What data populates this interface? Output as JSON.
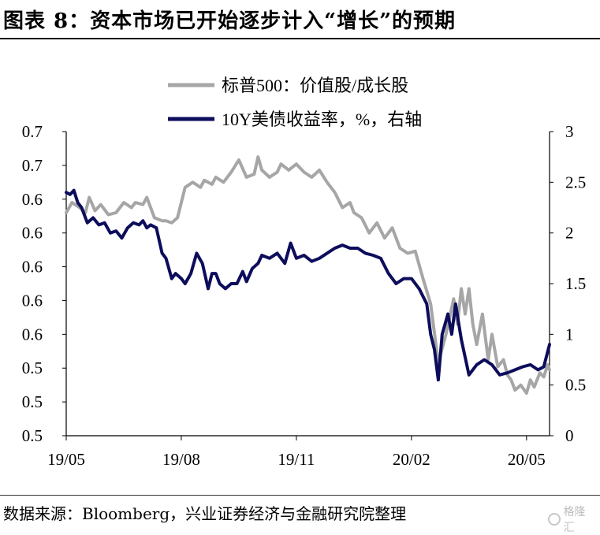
{
  "title": "图表 8：资本市场已开始逐步计入“增长”的预期",
  "source": "数据来源：Bloomberg，兴业证券经济与金融研究院整理",
  "watermark": {
    "text": "格隆汇",
    "icon": "gelonghui-logo-icon"
  },
  "chart_data": {
    "type": "line",
    "x_ticks": [
      "19/05",
      "19/08",
      "19/11",
      "20/02",
      "20/05"
    ],
    "x_tick_pos": [
      0,
      3,
      6,
      9,
      12
    ],
    "x_range": [
      0,
      12.6
    ],
    "left_axis": {
      "ticks": [
        "0.7",
        "0.7",
        "0.6",
        "0.6",
        "0.6",
        "0.6",
        "0.6",
        "0.5",
        "0.5",
        "0.5"
      ],
      "ylim": [
        0.5,
        0.7
      ]
    },
    "right_axis": {
      "ticks": [
        "3",
        "2.5",
        "2",
        "1.5",
        "1",
        "0.5",
        "0"
      ],
      "ylim": [
        0,
        3
      ]
    },
    "legend_position": "top-right",
    "colors": {
      "value_growth": "#a6a6a6",
      "treasury": "#0d0d5c"
    },
    "series": [
      {
        "name": "标普500：价值股/成长股",
        "axis": "right",
        "color": "#a6a6a6",
        "x": [
          0,
          0.15,
          0.35,
          0.5,
          0.6,
          0.75,
          0.9,
          1.1,
          1.3,
          1.5,
          1.7,
          1.8,
          2.0,
          2.1,
          2.3,
          2.5,
          2.6,
          2.75,
          2.9,
          3.1,
          3.3,
          3.5,
          3.6,
          3.8,
          3.9,
          4.1,
          4.3,
          4.5,
          4.7,
          4.9,
          5.0,
          5.1,
          5.3,
          5.5,
          5.6,
          5.8,
          6.0,
          6.2,
          6.4,
          6.6,
          6.8,
          7.0,
          7.2,
          7.4,
          7.5,
          7.7,
          7.9,
          8.1,
          8.3,
          8.5,
          8.7,
          8.9,
          9.1,
          9.3,
          9.5,
          9.7,
          9.9,
          10.1,
          10.2,
          10.3,
          10.4,
          10.5,
          10.6,
          10.7,
          10.85,
          11.0,
          11.1,
          11.25,
          11.4,
          11.5,
          11.6,
          11.7,
          11.85,
          12.0,
          12.1,
          12.2,
          12.35,
          12.45,
          12.55,
          12.6
        ],
        "y": [
          2.2,
          2.3,
          2.25,
          2.2,
          2.35,
          2.22,
          2.28,
          2.18,
          2.2,
          2.3,
          2.25,
          2.3,
          2.28,
          2.35,
          2.15,
          2.12,
          2.12,
          2.1,
          2.15,
          2.45,
          2.5,
          2.45,
          2.52,
          2.48,
          2.55,
          2.5,
          2.6,
          2.72,
          2.55,
          2.58,
          2.75,
          2.62,
          2.55,
          2.6,
          2.68,
          2.62,
          2.68,
          2.6,
          2.55,
          2.62,
          2.5,
          2.4,
          2.25,
          2.3,
          2.2,
          2.15,
          2.0,
          2.1,
          1.95,
          2.05,
          1.85,
          1.8,
          1.82,
          1.55,
          1.3,
          0.72,
          1.0,
          1.35,
          1.1,
          1.45,
          1.2,
          1.45,
          1.1,
          0.9,
          1.2,
          0.75,
          1.0,
          0.68,
          0.75,
          0.6,
          0.55,
          0.45,
          0.5,
          0.42,
          0.55,
          0.48,
          0.62,
          0.58,
          0.7,
          0.65
        ]
      },
      {
        "name": "10Y美债收益率，%，右轴",
        "axis": "right",
        "color": "#0d0d5c",
        "x": [
          0,
          0.1,
          0.2,
          0.3,
          0.4,
          0.55,
          0.7,
          0.85,
          1.0,
          1.15,
          1.3,
          1.45,
          1.6,
          1.75,
          1.9,
          2.0,
          2.1,
          2.2,
          2.35,
          2.5,
          2.6,
          2.75,
          2.85,
          3.0,
          3.1,
          3.25,
          3.4,
          3.55,
          3.7,
          3.8,
          3.9,
          4.0,
          4.15,
          4.3,
          4.45,
          4.6,
          4.7,
          4.85,
          5.0,
          5.1,
          5.3,
          5.5,
          5.7,
          5.85,
          6.0,
          6.2,
          6.4,
          6.6,
          6.8,
          7.0,
          7.2,
          7.4,
          7.6,
          7.8,
          8.0,
          8.2,
          8.4,
          8.6,
          8.8,
          9.0,
          9.2,
          9.4,
          9.5,
          9.6,
          9.7,
          9.8,
          9.95,
          10.05,
          10.15,
          10.3,
          10.5,
          10.7,
          10.9,
          11.1,
          11.3,
          11.5,
          11.7,
          11.9,
          12.1,
          12.3,
          12.45,
          12.6
        ],
        "y": [
          2.4,
          2.38,
          2.42,
          2.3,
          2.25,
          2.1,
          2.15,
          2.08,
          2.1,
          2.0,
          2.02,
          1.95,
          2.05,
          2.1,
          2.08,
          2.12,
          2.05,
          2.08,
          2.05,
          1.8,
          1.75,
          1.55,
          1.6,
          1.55,
          1.5,
          1.6,
          1.8,
          1.7,
          1.45,
          1.6,
          1.6,
          1.5,
          1.45,
          1.5,
          1.5,
          1.62,
          1.52,
          1.65,
          1.7,
          1.78,
          1.75,
          1.8,
          1.7,
          1.9,
          1.75,
          1.78,
          1.72,
          1.75,
          1.8,
          1.85,
          1.88,
          1.85,
          1.85,
          1.8,
          1.78,
          1.75,
          1.6,
          1.5,
          1.55,
          1.55,
          1.45,
          1.3,
          1.0,
          0.85,
          0.55,
          1.0,
          1.2,
          1.0,
          1.3,
          0.95,
          0.6,
          0.7,
          0.75,
          0.7,
          0.6,
          0.62,
          0.65,
          0.68,
          0.7,
          0.65,
          0.68,
          0.9
        ]
      }
    ]
  }
}
